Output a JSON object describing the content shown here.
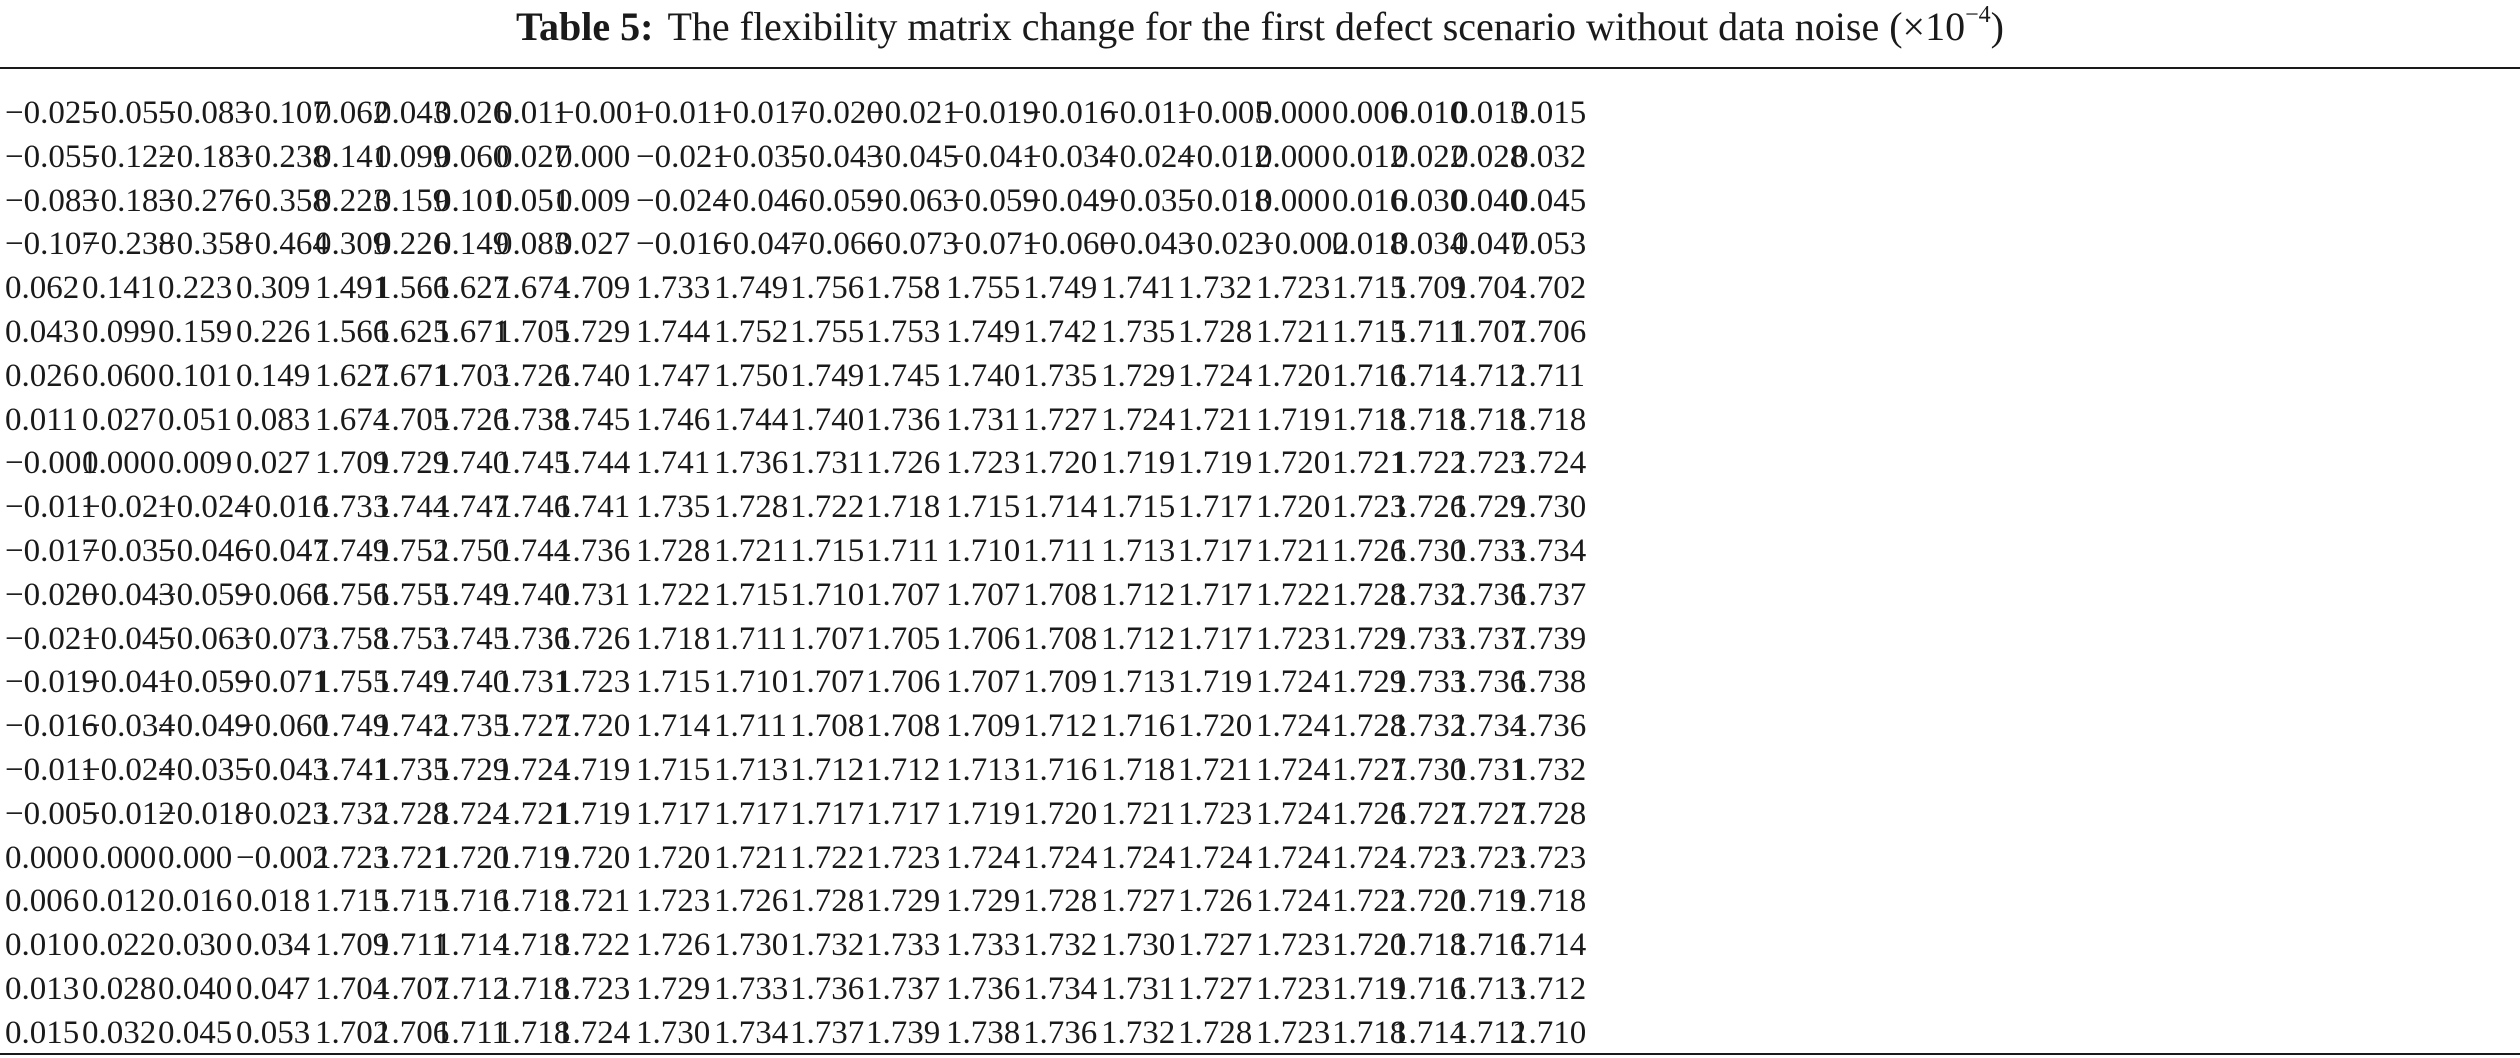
{
  "caption": {
    "label": "Table 5:",
    "text": "The flexibility matrix change for the first defect scenario without data noise (×10",
    "exponent": "−4",
    "close": ")"
  },
  "matrix": [
    [
      "−0.025",
      "−0.055",
      "−0.083",
      "−0.107",
      "0.062",
      "0.043",
      "0.026",
      "0.011",
      "−0.001",
      "−0.011",
      "−0.017",
      "−0.020",
      "−0.021",
      "−0.019",
      "−0.016",
      "−0.011",
      "−0.005",
      "0.000",
      "0.006",
      "0.010",
      "0.013",
      "0.015"
    ],
    [
      "−0.055",
      "−0.122",
      "−0.183",
      "−0.238",
      "0.141",
      "0.099",
      "0.060",
      "0.027",
      "0.000",
      "−0.021",
      "−0.035",
      "−0.043",
      "−0.045",
      "−0.041",
      "−0.034",
      "−0.024",
      "−0.012",
      "0.000",
      "0.012",
      "0.022",
      "0.028",
      "0.032"
    ],
    [
      "−0.083",
      "−0.183",
      "−0.276",
      "−0.358",
      "0.223",
      "0.159",
      "0.101",
      "0.051",
      "0.009",
      "−0.024",
      "−0.046",
      "−0.059",
      "−0.063",
      "−0.059",
      "−0.049",
      "−0.035",
      "−0.018",
      "0.000",
      "0.016",
      "0.030",
      "0.040",
      "0.045"
    ],
    [
      "−0.107",
      "−0.238",
      "−0.358",
      "−0.464",
      "0.309",
      "0.226",
      "0.149",
      "0.083",
      "0.027",
      "−0.016",
      "−0.047",
      "−0.066",
      "−0.073",
      "−0.071",
      "−0.060",
      "−0.043",
      "−0.023",
      "−0.002",
      "0.018",
      "0.034",
      "0.047",
      "0.053"
    ],
    [
      "0.062",
      "0.141",
      "0.223",
      "0.309",
      "1.491",
      "1.566",
      "1.627",
      "1.674",
      "1.709",
      "1.733",
      "1.749",
      "1.756",
      "1.758",
      "1.755",
      "1.749",
      "1.741",
      "1.732",
      "1.723",
      "1.715",
      "1.709",
      "1.704",
      "1.702"
    ],
    [
      "0.043",
      "0.099",
      "0.159",
      "0.226",
      "1.566",
      "1.625",
      "1.671",
      "1.705",
      "1.729",
      "1.744",
      "1.752",
      "1.755",
      "1.753",
      "1.749",
      "1.742",
      "1.735",
      "1.728",
      "1.721",
      "1.715",
      "1.711",
      "1.707",
      "1.706"
    ],
    [
      "0.026",
      "0.060",
      "0.101",
      "0.149",
      "1.627",
      "1.671",
      "1.703",
      "1.726",
      "1.740",
      "1.747",
      "1.750",
      "1.749",
      "1.745",
      "1.740",
      "1.735",
      "1.729",
      "1.724",
      "1.720",
      "1.716",
      "1.714",
      "1.712",
      "1.711"
    ],
    [
      "0.011",
      "0.027",
      "0.051",
      "0.083",
      "1.674",
      "1.705",
      "1.726",
      "1.738",
      "1.745",
      "1.746",
      "1.744",
      "1.740",
      "1.736",
      "1.731",
      "1.727",
      "1.724",
      "1.721",
      "1.719",
      "1.718",
      "1.718",
      "1.718",
      "1.718"
    ],
    [
      "−0.001",
      "0.000",
      "0.009",
      "0.027",
      "1.709",
      "1.729",
      "1.740",
      "1.745",
      "1.744",
      "1.741",
      "1.736",
      "1.731",
      "1.726",
      "1.723",
      "1.720",
      "1.719",
      "1.719",
      "1.720",
      "1.721",
      "1.722",
      "1.723",
      "1.724"
    ],
    [
      "−0.011",
      "−0.021",
      "−0.024",
      "−0.016",
      "1.733",
      "1.744",
      "1.747",
      "1.746",
      "1.741",
      "1.735",
      "1.728",
      "1.722",
      "1.718",
      "1.715",
      "1.714",
      "1.715",
      "1.717",
      "1.720",
      "1.723",
      "1.726",
      "1.729",
      "1.730"
    ],
    [
      "−0.017",
      "−0.035",
      "−0.046",
      "−0.047",
      "1.749",
      "1.752",
      "1.750",
      "1.744",
      "1.736",
      "1.728",
      "1.721",
      "1.715",
      "1.711",
      "1.710",
      "1.711",
      "1.713",
      "1.717",
      "1.721",
      "1.726",
      "1.730",
      "1.733",
      "1.734"
    ],
    [
      "−0.020",
      "−0.043",
      "−0.059",
      "−0.066",
      "1.756",
      "1.755",
      "1.749",
      "1.740",
      "1.731",
      "1.722",
      "1.715",
      "1.710",
      "1.707",
      "1.707",
      "1.708",
      "1.712",
      "1.717",
      "1.722",
      "1.728",
      "1.732",
      "1.736",
      "1.737"
    ],
    [
      "−0.021",
      "−0.045",
      "−0.063",
      "−0.073",
      "1.758",
      "1.753",
      "1.745",
      "1.736",
      "1.726",
      "1.718",
      "1.711",
      "1.707",
      "1.705",
      "1.706",
      "1.708",
      "1.712",
      "1.717",
      "1.723",
      "1.729",
      "1.733",
      "1.737",
      "1.739"
    ],
    [
      "−0.019",
      "−0.041",
      "−0.059",
      "−0.071",
      "1.755",
      "1.749",
      "1.740",
      "1.731",
      "1.723",
      "1.715",
      "1.710",
      "1.707",
      "1.706",
      "1.707",
      "1.709",
      "1.713",
      "1.719",
      "1.724",
      "1.729",
      "1.733",
      "1.736",
      "1.738"
    ],
    [
      "−0.016",
      "−0.034",
      "−0.049",
      "−0.060",
      "1.749",
      "1.742",
      "1.735",
      "1.727",
      "1.720",
      "1.714",
      "1.711",
      "1.708",
      "1.708",
      "1.709",
      "1.712",
      "1.716",
      "1.720",
      "1.724",
      "1.728",
      "1.732",
      "1.734",
      "1.736"
    ],
    [
      "−0.011",
      "−0.024",
      "−0.035",
      "−0.043",
      "1.741",
      "1.735",
      "1.729",
      "1.724",
      "1.719",
      "1.715",
      "1.713",
      "1.712",
      "1.712",
      "1.713",
      "1.716",
      "1.718",
      "1.721",
      "1.724",
      "1.727",
      "1.730",
      "1.731",
      "1.732"
    ],
    [
      "−0.005",
      "−0.012",
      "−0.018",
      "−0.023",
      "1.732",
      "1.728",
      "1.724",
      "1.721",
      "1.719",
      "1.717",
      "1.717",
      "1.717",
      "1.717",
      "1.719",
      "1.720",
      "1.721",
      "1.723",
      "1.724",
      "1.726",
      "1.727",
      "1.727",
      "1.728"
    ],
    [
      "0.000",
      "0.000",
      "0.000",
      "−0.002",
      "1.723",
      "1.721",
      "1.720",
      "1.719",
      "1.720",
      "1.720",
      "1.721",
      "1.722",
      "1.723",
      "1.724",
      "1.724",
      "1.724",
      "1.724",
      "1.724",
      "1.724",
      "1.723",
      "1.723",
      "1.723"
    ],
    [
      "0.006",
      "0.012",
      "0.016",
      "0.018",
      "1.715",
      "1.715",
      "1.716",
      "1.718",
      "1.721",
      "1.723",
      "1.726",
      "1.728",
      "1.729",
      "1.729",
      "1.728",
      "1.727",
      "1.726",
      "1.724",
      "1.722",
      "1.720",
      "1.719",
      "1.718"
    ],
    [
      "0.010",
      "0.022",
      "0.030",
      "0.034",
      "1.709",
      "1.711",
      "1.714",
      "1.718",
      "1.722",
      "1.726",
      "1.730",
      "1.732",
      "1.733",
      "1.733",
      "1.732",
      "1.730",
      "1.727",
      "1.723",
      "1.720",
      "1.718",
      "1.716",
      "1.714"
    ],
    [
      "0.013",
      "0.028",
      "0.040",
      "0.047",
      "1.704",
      "1.707",
      "1.712",
      "1.718",
      "1.723",
      "1.729",
      "1.733",
      "1.736",
      "1.737",
      "1.736",
      "1.734",
      "1.731",
      "1.727",
      "1.723",
      "1.719",
      "1.716",
      "1.713",
      "1.712"
    ],
    [
      "0.015",
      "0.032",
      "0.045",
      "0.053",
      "1.702",
      "1.706",
      "1.711",
      "1.718",
      "1.724",
      "1.730",
      "1.734",
      "1.737",
      "1.739",
      "1.738",
      "1.736",
      "1.732",
      "1.728",
      "1.723",
      "1.718",
      "1.714",
      "1.712",
      "1.710"
    ]
  ]
}
